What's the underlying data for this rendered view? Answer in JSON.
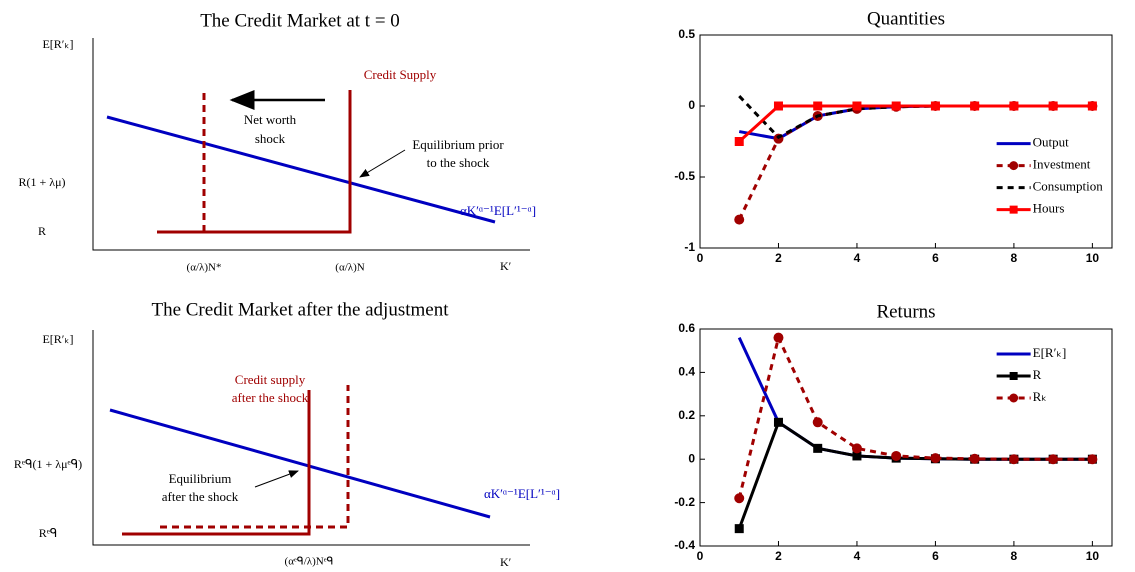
{
  "diagrams": [
    {
      "title": "The Credit Market at t = 0",
      "y_label": "E[R′ₖ]",
      "x_label": "K′",
      "y_levels": [
        "R(1 + λμ)",
        "R"
      ],
      "x_levels": [
        "(α/λ)N*",
        "(α/λ)N"
      ],
      "supply_label": [
        "Credit Supply"
      ],
      "demand_label": "αK′ᵅ⁻¹E[L′¹⁻ᵅ]",
      "annotations": [
        [
          "Net worth",
          "shock"
        ],
        [
          "Equilibrium prior",
          "to the shock"
        ]
      ]
    },
    {
      "title": "The Credit Market after the adjustment",
      "y_label": "E[R′ₖ]",
      "x_label": "K′",
      "y_levels": [
        "Rᵉᑫ(1 + λμᵉᑫ)",
        "Rᵉᑫ"
      ],
      "x_levels": [
        "(αᵉᑫ/λ)Nᵉᑫ"
      ],
      "supply_label": [
        "Credit supply",
        "after the shock"
      ],
      "demand_label": "αK′ᵅ⁻¹E[L′¹⁻ᵅ]",
      "annotations": [
        [
          "Equilibrium",
          "after the shock"
        ]
      ]
    }
  ],
  "chart_data": [
    {
      "type": "line",
      "title": "Quantities",
      "x": [
        1,
        2,
        3,
        4,
        5,
        6,
        7,
        8,
        9,
        10
      ],
      "xlim": [
        0,
        10.5
      ],
      "xticks": [
        0,
        2,
        4,
        6,
        8,
        10
      ],
      "ylim": [
        -1,
        0.5
      ],
      "yticks": [
        -1,
        -0.5,
        0,
        0.5
      ],
      "legend": "east",
      "series": [
        {
          "name": "Output",
          "color": "#0000c0",
          "dash": false,
          "marker": "none",
          "values": [
            -0.18,
            -0.23,
            -0.07,
            -0.02,
            -0.005,
            0,
            0,
            0,
            0,
            0
          ]
        },
        {
          "name": "Investment",
          "color": "#a00000",
          "dash": true,
          "marker": "circle",
          "values": [
            -0.8,
            -0.23,
            -0.07,
            -0.02,
            -0.005,
            0,
            0,
            0,
            0,
            0
          ]
        },
        {
          "name": "Consumption",
          "color": "#000000",
          "dash": true,
          "marker": "none",
          "values": [
            0.07,
            -0.22,
            -0.07,
            -0.02,
            -0.005,
            0,
            0,
            0,
            0,
            0
          ]
        },
        {
          "name": "Hours",
          "color": "#ff0000",
          "dash": false,
          "marker": "square",
          "values": [
            -0.25,
            0,
            0,
            0,
            0,
            0,
            0,
            0,
            0,
            0
          ]
        }
      ]
    },
    {
      "type": "line",
      "title": "Returns",
      "x": [
        1,
        2,
        3,
        4,
        5,
        6,
        7,
        8,
        9,
        10
      ],
      "xlim": [
        0,
        10.5
      ],
      "xticks": [
        0,
        2,
        4,
        6,
        8,
        10
      ],
      "ylim": [
        -0.4,
        0.6
      ],
      "yticks": [
        -0.4,
        -0.2,
        0,
        0.2,
        0.4,
        0.6
      ],
      "legend": "northeast",
      "series": [
        {
          "name": "E[R′ₖ]",
          "color": "#0000c0",
          "dash": false,
          "marker": "none",
          "values": [
            0.56,
            0.17,
            0.05,
            0.015,
            0.005,
            0.002,
            0,
            0,
            0,
            0
          ]
        },
        {
          "name": "R",
          "color": "#000000",
          "dash": false,
          "marker": "square",
          "values": [
            -0.32,
            0.17,
            0.05,
            0.015,
            0.005,
            0.002,
            0,
            0,
            0,
            0
          ]
        },
        {
          "name": "Rₖ",
          "color": "#a00000",
          "dash": true,
          "marker": "circle",
          "values": [
            -0.18,
            0.56,
            0.17,
            0.05,
            0.015,
            0.005,
            0.002,
            0,
            0,
            0
          ]
        }
      ]
    }
  ]
}
